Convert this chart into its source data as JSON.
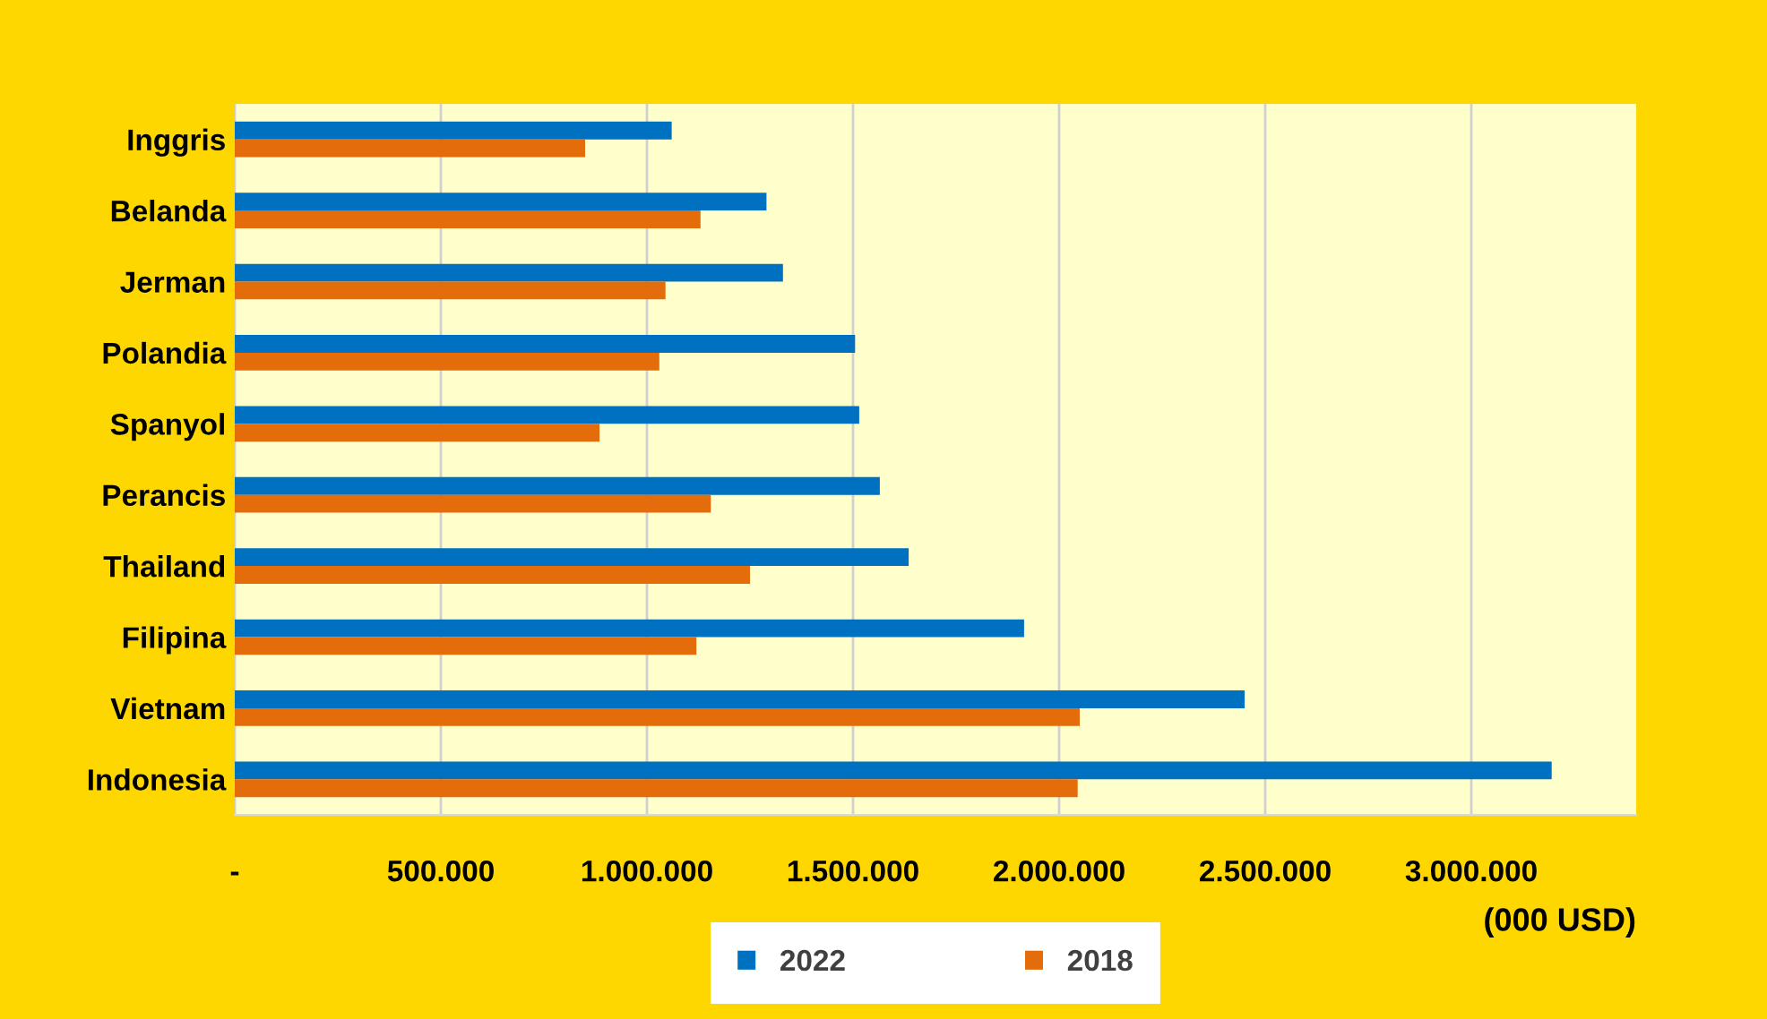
{
  "chart_data": {
    "type": "bar",
    "orientation": "horizontal",
    "categories": [
      "Inggris",
      "Belanda",
      "Jerman",
      "Polandia",
      "Spanyol",
      "Perancis",
      "Thailand",
      "Filipina",
      "Vietnam",
      "Indonesia"
    ],
    "series": [
      {
        "name": "2022",
        "color": "#0070c0",
        "values": [
          1060000,
          1290000,
          1330000,
          1505000,
          1515000,
          1565000,
          1635000,
          1915000,
          2450000,
          3195000
        ]
      },
      {
        "name": "2018",
        "color": "#e46c0a",
        "values": [
          850000,
          1130000,
          1045000,
          1030000,
          885000,
          1155000,
          1250000,
          1120000,
          2050000,
          2045000
        ]
      }
    ],
    "xlim": [
      0,
      3400000
    ],
    "xticks": [
      {
        "value": 0,
        "label": "-"
      },
      {
        "value": 500000,
        "label": "500.000"
      },
      {
        "value": 1000000,
        "label": "1.000.000"
      },
      {
        "value": 1500000,
        "label": "1.500.000"
      },
      {
        "value": 2000000,
        "label": "2.000.000"
      },
      {
        "value": 2500000,
        "label": "2.500.000"
      },
      {
        "value": 3000000,
        "label": "3.000.000"
      }
    ],
    "xlabel": "(000 USD)",
    "grid": "x",
    "legend": "bottom"
  }
}
